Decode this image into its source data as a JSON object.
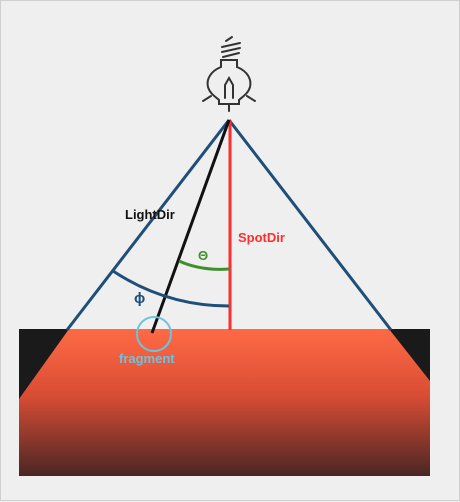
{
  "labels": {
    "light_dir": "LightDir",
    "spot_dir": "SpotDir",
    "theta": "Θ",
    "phi": "ϕ",
    "fragment": "fragment"
  },
  "icons": {
    "light": "light-bulb-icon"
  },
  "colors": {
    "background": "#efefef",
    "cone": "#1f4e79",
    "spot_dir": "#ff2e2e",
    "light_dir": "#111111",
    "theta_arc": "#3f8f2f",
    "phi_arc": "#1f4e79",
    "fragment": "#69c5df",
    "surface_top": "#ff6a45",
    "surface_bottom": "#4a2624",
    "surface_shadow": "#1a1a1a"
  }
}
